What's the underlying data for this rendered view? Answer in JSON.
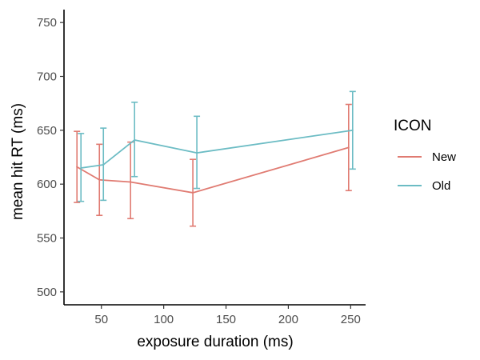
{
  "chart_data": {
    "type": "line",
    "xlabel": "exposure duration (ms)",
    "ylabel": "mean hit RT (ms)",
    "xlim": [
      20,
      262
    ],
    "ylim": [
      488,
      762
    ],
    "xticks": [
      50,
      100,
      150,
      200,
      250
    ],
    "yticks": [
      500,
      550,
      600,
      650,
      700,
      750
    ],
    "grid": false,
    "legend": {
      "title": "ICON",
      "placement": "right"
    },
    "series": [
      {
        "name": "New",
        "color": "#e07b72",
        "x": [
          32,
          50,
          75,
          125,
          250
        ],
        "y": [
          616,
          604,
          602,
          592,
          634
        ],
        "err_low": [
          583,
          571,
          568,
          561,
          594
        ],
        "err_high": [
          649,
          637,
          639,
          623,
          674
        ]
      },
      {
        "name": "Old",
        "color": "#6cbcc4",
        "x": [
          32,
          50,
          75,
          125,
          250
        ],
        "y": [
          615,
          618,
          641,
          629,
          650
        ],
        "err_low": [
          584,
          585,
          607,
          596,
          614
        ],
        "err_high": [
          647,
          652,
          676,
          663,
          686
        ]
      }
    ]
  }
}
